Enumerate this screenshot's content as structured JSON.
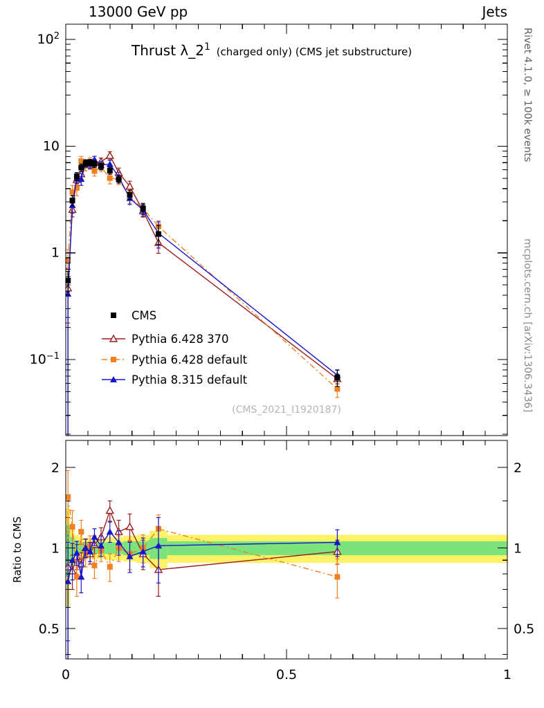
{
  "header": {
    "left": "13000 GeV pp",
    "right": "Jets"
  },
  "labels": {
    "title_main": "Thrust λ_2",
    "title_sup": "1",
    "title_rest": " (charged only) (CMS jet substructure)",
    "watermark": "(CMS_2021_I1920187)",
    "rivet": "Rivet 4.1.0, ≥ 100k events",
    "mcplots": "mcplots.cern.ch [arXiv:1306.3436]",
    "ratio_ylabel": "Ratio to CMS"
  },
  "colors": {
    "cms": "#000000",
    "pythia6_370": "#9b1c1c",
    "pythia6_default": "#f08020",
    "pythia8_default": "#1515cc",
    "band_yellow": "#fff266",
    "band_green": "#7ce27c",
    "frame": "#000000"
  },
  "chart_data": {
    "type": "line",
    "title": "Thrust λ_2^1 (charged only) (CMS jet substructure)",
    "x_range": [
      0,
      1
    ],
    "main_y_log_range": [
      0.0194,
      138.8
    ],
    "ratio_y_log_range": [
      0.385,
      2.524
    ],
    "grid": false,
    "legend_position": "inside-left-bottom",
    "bin_edges": [
      0,
      0.01,
      0.02,
      0.03,
      0.04,
      0.05,
      0.06,
      0.07,
      0.09,
      0.11,
      0.13,
      0.16,
      0.19,
      0.23,
      1.0
    ],
    "x": [
      0.005,
      0.015,
      0.025,
      0.035,
      0.045,
      0.055,
      0.065,
      0.08,
      0.1,
      0.12,
      0.145,
      0.175,
      0.21,
      0.615
    ],
    "xticks": {
      "values": [
        0,
        0.5,
        1
      ],
      "labels": [
        "0",
        "0.5",
        "1"
      ],
      "minor_step": 0.05
    },
    "main_yticks": [
      {
        "v": 100,
        "base": "10",
        "sup": "2"
      },
      {
        "v": 10,
        "base": "10",
        "sup": ""
      },
      {
        "v": 1,
        "base": "1",
        "sup": ""
      },
      {
        "v": 0.1,
        "base": "10",
        "sup": "−1"
      }
    ],
    "ratio_yticks": {
      "values": [
        2,
        1,
        0.5
      ],
      "labels": [
        "2",
        "1",
        "0.5"
      ],
      "minor": [
        0.4,
        0.6,
        0.7,
        0.8,
        0.9,
        1.5
      ]
    },
    "series": [
      {
        "key": "cms",
        "name": "CMS",
        "type": "data",
        "marker": "square-filled",
        "color": "#000000",
        "line": "none",
        "y": [
          0.55,
          3.1,
          5.2,
          6.3,
          6.9,
          7.0,
          6.8,
          6.5,
          5.9,
          4.9,
          3.5,
          2.6,
          1.5,
          0.068
        ],
        "yerr": [
          0.12,
          0.35,
          0.45,
          0.5,
          0.5,
          0.5,
          0.5,
          0.5,
          0.45,
          0.4,
          0.35,
          0.3,
          0.3,
          0.012
        ]
      },
      {
        "key": "pythia6-370",
        "name": "Pythia 6.428 370",
        "type": "mc",
        "marker": "triangle-open",
        "color": "#9b1c1c",
        "line": "solid",
        "ratio": [
          0.85,
          0.82,
          0.93,
          0.87,
          1.0,
          0.95,
          1.03,
          1.1,
          1.38,
          1.15,
          1.2,
          0.95,
          0.83,
          0.97
        ],
        "ratio_err": [
          0.45,
          0.12,
          0.1,
          0.09,
          0.08,
          0.08,
          0.08,
          0.09,
          0.12,
          0.12,
          0.14,
          0.12,
          0.17,
          0.1
        ]
      },
      {
        "key": "pythia6-default",
        "name": "Pythia 6.428 default",
        "type": "mc",
        "marker": "square-filled",
        "color": "#f08020",
        "line": "dashdot",
        "ratio": [
          1.55,
          1.2,
          0.78,
          1.15,
          0.95,
          1.02,
          0.86,
          0.98,
          0.85,
          1.0,
          0.95,
          1.0,
          1.18,
          0.78
        ],
        "ratio_err": [
          0.4,
          0.18,
          0.12,
          0.12,
          0.1,
          0.09,
          0.09,
          0.09,
          0.1,
          0.11,
          0.12,
          0.12,
          0.15,
          0.13
        ]
      },
      {
        "key": "pythia8-default",
        "name": "Pythia 8.315 default",
        "type": "mc",
        "marker": "triangle-filled",
        "color": "#1515cc",
        "line": "solid",
        "ratio": [
          0.75,
          0.9,
          0.96,
          0.78,
          1.0,
          0.97,
          1.1,
          1.02,
          1.15,
          1.05,
          0.93,
          0.97,
          1.02,
          1.05
        ],
        "ratio_err": [
          0.3,
          0.14,
          0.1,
          0.1,
          0.08,
          0.08,
          0.08,
          0.09,
          0.1,
          0.11,
          0.12,
          0.12,
          0.28,
          0.12
        ]
      }
    ],
    "bands": {
      "yellow_hw": [
        0.4,
        0.18,
        0.12,
        0.1,
        0.09,
        0.09,
        0.09,
        0.09,
        0.1,
        0.1,
        0.11,
        0.12,
        0.16,
        0.12
      ],
      "green_hw": [
        0.22,
        0.1,
        0.06,
        0.05,
        0.05,
        0.05,
        0.05,
        0.05,
        0.05,
        0.05,
        0.06,
        0.06,
        0.09,
        0.06
      ]
    }
  }
}
